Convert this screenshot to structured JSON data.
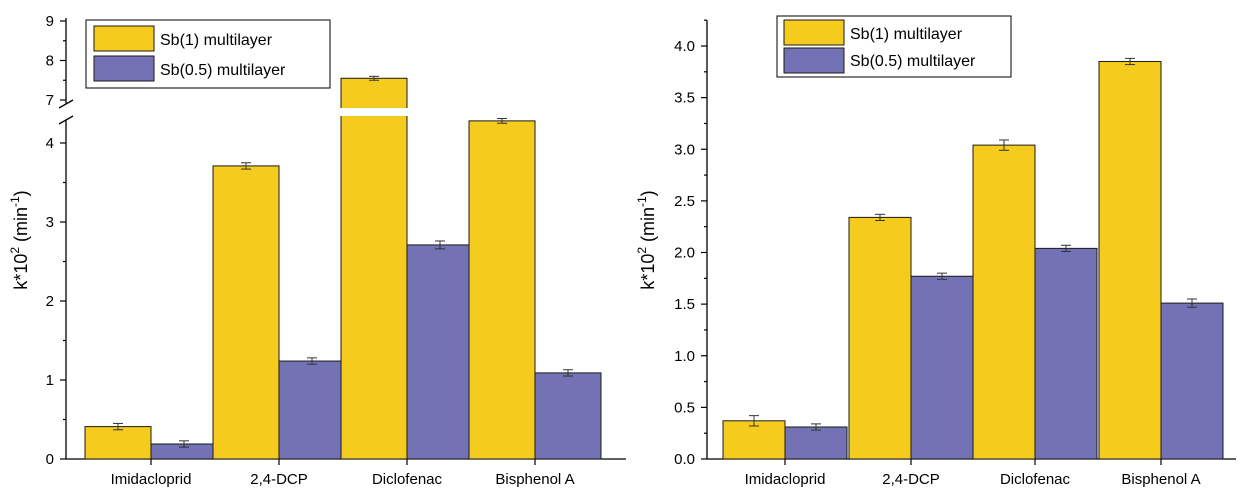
{
  "chart_data": [
    {
      "type": "bar",
      "categories": [
        "Imidacloprid",
        "2,4-DCP",
        "Diclofenac",
        "Bisphenol A"
      ],
      "ylabel": "k*10",
      "ylabel_sup": "2",
      "ylabel_unit": " (min",
      "ylabel_unit_sup": "-1",
      "ylabel_close": ")",
      "broken_axis": true,
      "lower_range": [
        0,
        4.5
      ],
      "upper_range": [
        6.6,
        9
      ],
      "lower_ticks": [
        "0",
        "1",
        "2",
        "3",
        "4"
      ],
      "upper_ticks": [
        "7",
        "8",
        "9"
      ],
      "legend_position": "top-left",
      "series": [
        {
          "name": "Sb(1) multilayer",
          "color": "#f5cc1e",
          "values": [
            0.41,
            3.71,
            7.55,
            4.28
          ],
          "errors": [
            0.04,
            0.04,
            0.05,
            0.03
          ]
        },
        {
          "name": "Sb(0.5) multilayer",
          "color": "#7272b4",
          "values": [
            0.19,
            1.24,
            2.71,
            1.09
          ],
          "errors": [
            0.04,
            0.04,
            0.05,
            0.04
          ]
        }
      ]
    },
    {
      "type": "bar",
      "categories": [
        "Imidacloprid",
        "2,4-DCP",
        "Diclofenac",
        "Bisphenol A"
      ],
      "ylabel": "k*10",
      "ylabel_sup": "2",
      "ylabel_unit": " (min",
      "ylabel_unit_sup": "-1",
      "ylabel_close": ")",
      "ylim": [
        0,
        4.25
      ],
      "yticks": [
        "0.0",
        "0.5",
        "1.0",
        "1.5",
        "2.0",
        "2.5",
        "3.0",
        "3.5",
        "4.0"
      ],
      "legend_position": "top-left",
      "series": [
        {
          "name": "Sb(1) multilayer",
          "color": "#f5cc1e",
          "values": [
            0.37,
            2.34,
            3.04,
            3.85
          ],
          "errors": [
            0.05,
            0.03,
            0.05,
            0.03
          ]
        },
        {
          "name": "Sb(0.5) multilayer",
          "color": "#7272b4",
          "values": [
            0.31,
            1.77,
            2.04,
            1.51
          ],
          "errors": [
            0.03,
            0.03,
            0.03,
            0.04
          ]
        }
      ]
    }
  ]
}
